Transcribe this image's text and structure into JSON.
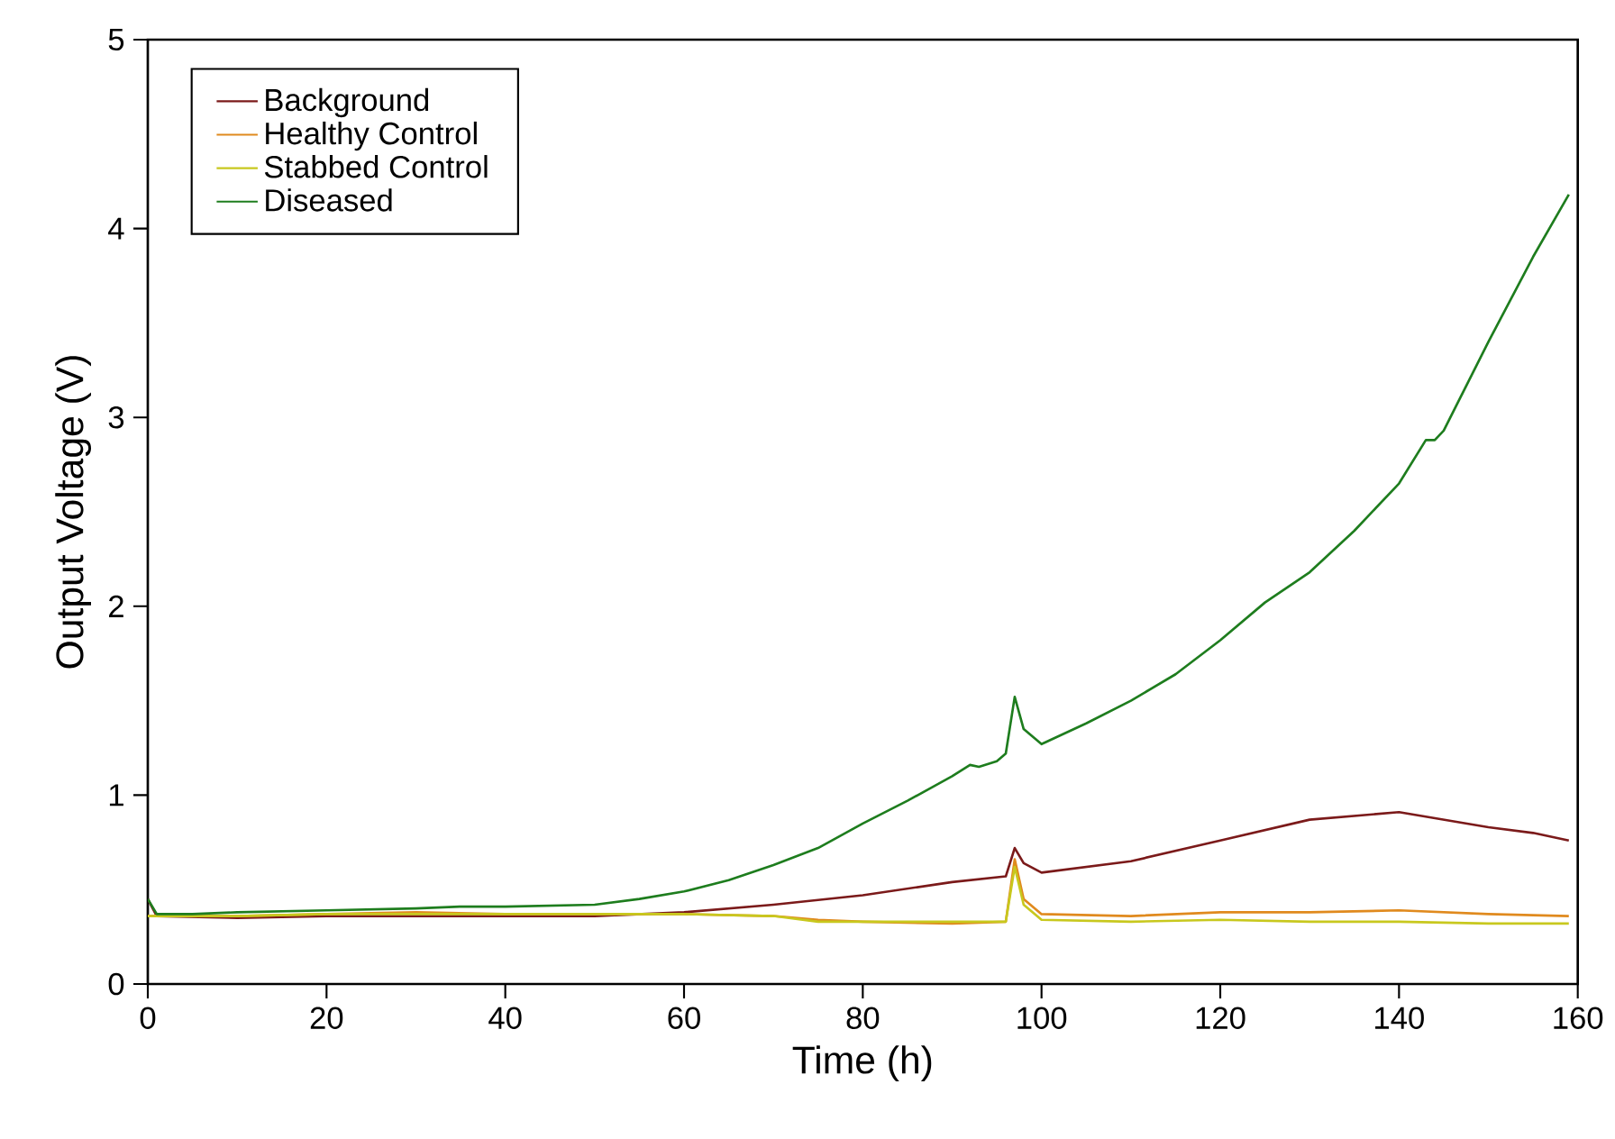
{
  "chart_data": {
    "type": "line",
    "xlabel": "Time  (h)",
    "ylabel": "Output Voltage (V)",
    "xlim": [
      0,
      160
    ],
    "ylim": [
      0,
      5
    ],
    "xticks": [
      0,
      20,
      40,
      60,
      80,
      100,
      120,
      140,
      160
    ],
    "yticks": [
      0,
      1,
      2,
      3,
      4,
      5
    ],
    "grid": false,
    "legend": "top left",
    "marker": "none",
    "line_style": "solid",
    "series": [
      {
        "name": "Background",
        "color": "#7b1a1a",
        "x": [
          0,
          1,
          10,
          20,
          30,
          40,
          50,
          60,
          70,
          80,
          90,
          96,
          97,
          98,
          100,
          110,
          120,
          130,
          140,
          145,
          150,
          155,
          159
        ],
        "values": [
          0.45,
          0.36,
          0.35,
          0.36,
          0.36,
          0.36,
          0.36,
          0.38,
          0.42,
          0.47,
          0.54,
          0.57,
          0.72,
          0.64,
          0.59,
          0.65,
          0.76,
          0.87,
          0.91,
          0.87,
          0.83,
          0.8,
          0.76
        ]
      },
      {
        "name": "Healthy Control",
        "color": "#e08a1e",
        "x": [
          0,
          10,
          20,
          30,
          40,
          50,
          60,
          70,
          75,
          80,
          90,
          96,
          97,
          98,
          100,
          110,
          120,
          130,
          140,
          150,
          159
        ],
        "values": [
          0.36,
          0.36,
          0.37,
          0.38,
          0.37,
          0.37,
          0.37,
          0.36,
          0.34,
          0.33,
          0.32,
          0.33,
          0.66,
          0.45,
          0.37,
          0.36,
          0.38,
          0.38,
          0.39,
          0.37,
          0.36
        ]
      },
      {
        "name": "Stabbed Control",
        "color": "#c8c81e",
        "x": [
          0,
          10,
          20,
          30,
          40,
          50,
          60,
          70,
          75,
          80,
          90,
          96,
          97,
          98,
          100,
          110,
          120,
          130,
          140,
          150,
          159
        ],
        "values": [
          0.36,
          0.36,
          0.37,
          0.37,
          0.37,
          0.37,
          0.37,
          0.36,
          0.33,
          0.33,
          0.33,
          0.33,
          0.62,
          0.42,
          0.34,
          0.33,
          0.34,
          0.33,
          0.33,
          0.32,
          0.32
        ]
      },
      {
        "name": "Diseased",
        "color": "#1e7d1e",
        "x": [
          0,
          1,
          5,
          10,
          20,
          30,
          35,
          40,
          50,
          55,
          60,
          65,
          70,
          75,
          80,
          85,
          90,
          92,
          93,
          95,
          96,
          97,
          98,
          100,
          105,
          110,
          115,
          120,
          125,
          130,
          135,
          140,
          143,
          144,
          145,
          150,
          155,
          159
        ],
        "values": [
          0.45,
          0.37,
          0.37,
          0.38,
          0.39,
          0.4,
          0.41,
          0.41,
          0.42,
          0.45,
          0.49,
          0.55,
          0.63,
          0.72,
          0.85,
          0.97,
          1.1,
          1.16,
          1.15,
          1.18,
          1.22,
          1.52,
          1.35,
          1.27,
          1.38,
          1.5,
          1.64,
          1.82,
          2.02,
          2.18,
          2.4,
          2.65,
          2.88,
          2.88,
          2.93,
          3.4,
          3.85,
          4.18
        ]
      }
    ]
  }
}
